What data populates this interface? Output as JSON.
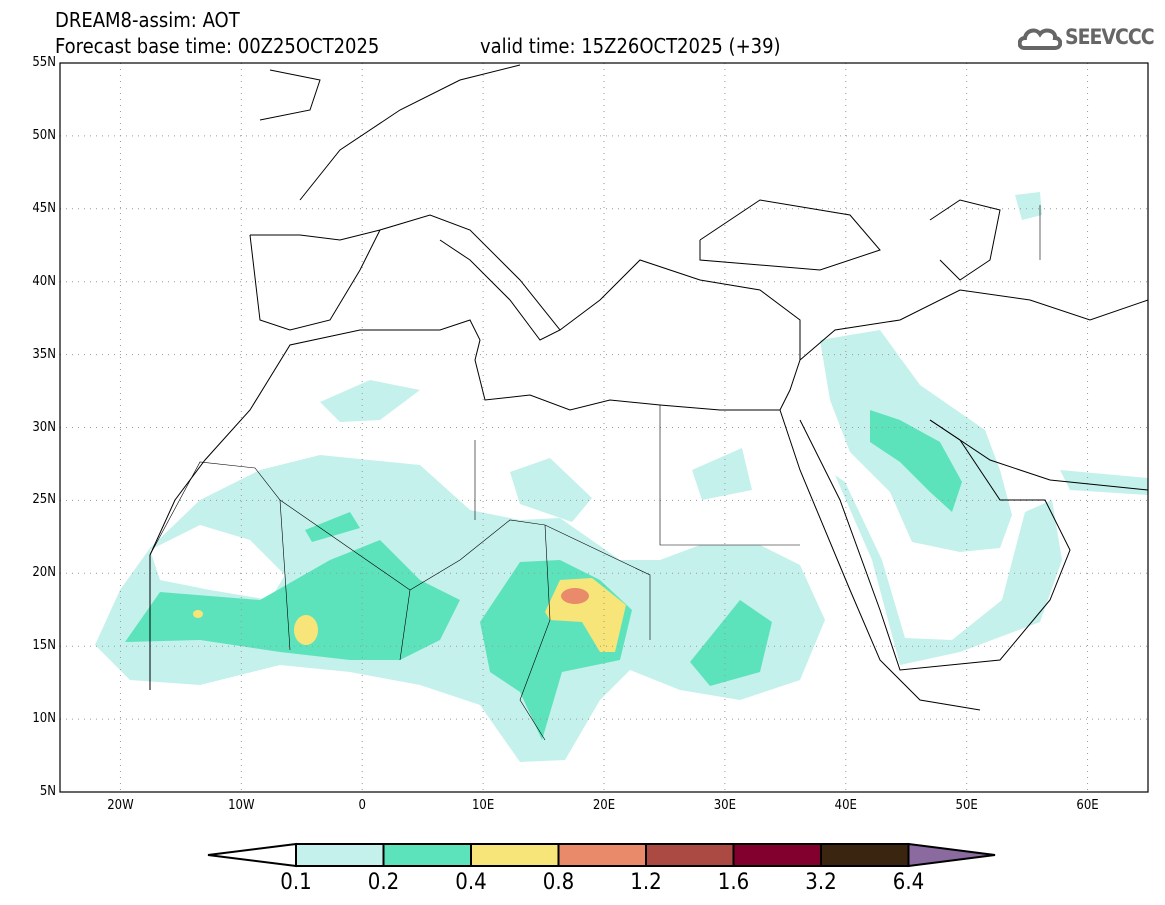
{
  "header": {
    "title": "DREAM8-assim: AOT",
    "base_time": "Forecast base time: 00Z25OCT2025",
    "valid_time": "valid time: 15Z26OCT2025 (+39)"
  },
  "logo": {
    "text": "SEEVCCC",
    "icon": "cloud-icon"
  },
  "axes": {
    "lat_labels": [
      "5N",
      "10N",
      "15N",
      "20N",
      "25N",
      "30N",
      "35N",
      "40N",
      "45N",
      "50N",
      "55N"
    ],
    "lon_labels": [
      "20W",
      "10W",
      "0",
      "10E",
      "20E",
      "30E",
      "40E",
      "50E",
      "60E"
    ]
  },
  "colorbar": {
    "levels": [
      "0.1",
      "0.2",
      "0.4",
      "0.8",
      "1.2",
      "1.6",
      "3.2",
      "6.4"
    ],
    "colors": [
      "#ffffff",
      "#c4f1ec",
      "#5de3bc",
      "#f7e57a",
      "#e98b6b",
      "#ab4a42",
      "#82002e",
      "#3a2510",
      "#8b6aa0"
    ]
  }
}
